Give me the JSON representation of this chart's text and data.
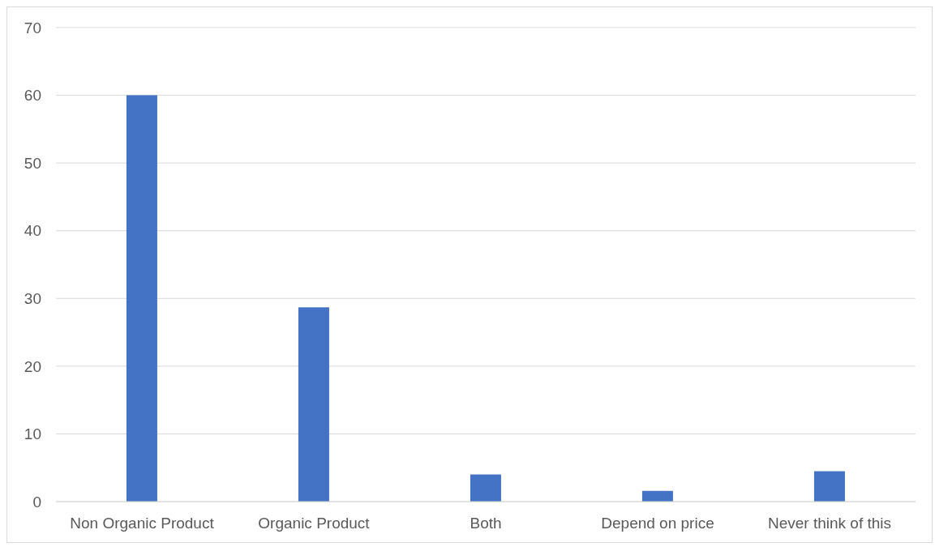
{
  "chart_data": {
    "type": "bar",
    "categories": [
      "Non Organic Product",
      "Organic Product",
      "Both",
      "Depend on price",
      "Never think of this"
    ],
    "values": [
      60,
      28.7,
      4,
      1.6,
      4.5
    ],
    "color": "#4472c4",
    "ylim": [
      0,
      70
    ],
    "yticks": [
      0,
      10,
      20,
      30,
      40,
      50,
      60,
      70
    ],
    "grid": "y"
  }
}
